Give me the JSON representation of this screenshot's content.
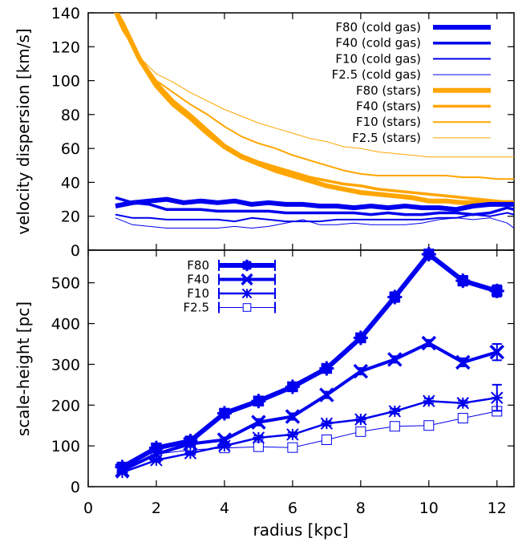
{
  "chart_data": [
    {
      "type": "line",
      "ylabel": "velocity dispersion [km/s]",
      "xlim": [
        0,
        12.5
      ],
      "ylim": [
        0,
        140
      ],
      "yticks": [
        0,
        20,
        40,
        60,
        80,
        100,
        120,
        140
      ],
      "grid": false,
      "legend_placement": "top-right",
      "series": [
        {
          "name": "F80 (cold gas)",
          "color": "#0000ee",
          "x": [
            0.8,
            1.3,
            1.8,
            2.3,
            2.8,
            3.3,
            3.8,
            4.3,
            4.8,
            5.3,
            5.8,
            6.3,
            6.8,
            7.3,
            7.8,
            8.3,
            8.8,
            9.3,
            9.8,
            10.3,
            10.8,
            11.3,
            11.8,
            12.3,
            12.5
          ],
          "y": [
            26,
            28,
            29,
            30,
            28,
            29,
            28,
            29,
            27,
            28,
            27,
            27,
            26,
            26,
            25,
            26,
            25,
            26,
            25,
            25,
            24,
            26,
            27,
            27,
            27
          ]
        },
        {
          "name": "F40 (cold gas)",
          "color": "#0000ee",
          "x": [
            0.8,
            1.3,
            1.8,
            2.3,
            2.8,
            3.3,
            3.8,
            4.3,
            4.8,
            5.3,
            5.8,
            6.3,
            6.8,
            7.3,
            7.8,
            8.3,
            8.8,
            9.3,
            9.8,
            10.3,
            10.8,
            11.3,
            11.8,
            12.3,
            12.5
          ],
          "y": [
            31,
            28,
            27,
            24,
            24,
            24,
            23,
            23,
            23,
            23,
            22,
            22,
            22,
            22,
            22,
            21,
            22,
            21,
            21,
            22,
            22,
            21,
            22,
            25,
            24
          ]
        },
        {
          "name": "F10 (cold gas)",
          "color": "#0000ee",
          "x": [
            0.8,
            1.3,
            1.8,
            2.3,
            2.8,
            3.3,
            3.8,
            4.3,
            4.8,
            5.3,
            5.8,
            6.3,
            6.8,
            7.3,
            7.8,
            8.3,
            8.8,
            9.3,
            9.8,
            10.3,
            10.8,
            11.3,
            11.8,
            12.3,
            12.5
          ],
          "y": [
            21,
            19,
            19,
            18,
            18,
            18,
            18,
            17,
            19,
            18,
            17,
            17,
            17,
            18,
            18,
            18,
            18,
            18,
            18,
            19,
            19,
            21,
            20,
            22,
            21
          ]
        },
        {
          "name": "F2.5 (cold gas)",
          "color": "#0000ee",
          "x": [
            0.8,
            1.3,
            1.8,
            2.3,
            2.8,
            3.3,
            3.8,
            4.3,
            4.8,
            5.3,
            5.8,
            6.3,
            6.8,
            7.3,
            7.8,
            8.3,
            8.8,
            9.3,
            9.8,
            10.3,
            10.8,
            11.3,
            11.8,
            12.3,
            12.5
          ],
          "y": [
            19,
            15,
            14,
            13,
            13,
            13,
            13,
            14,
            13,
            14,
            16,
            18,
            15,
            15,
            16,
            15,
            15,
            15,
            16,
            18,
            19,
            18,
            19,
            16,
            13
          ]
        },
        {
          "name": "F80 (stars)",
          "color": "#ffa500",
          "x": [
            0.8,
            1.0,
            1.5,
            2.0,
            2.5,
            3.0,
            3.5,
            4.0,
            4.5,
            5.0,
            5.5,
            6.0,
            6.5,
            7.0,
            7.5,
            8.0,
            8.5,
            9.0,
            9.5,
            10.0,
            10.5,
            11.0,
            11.5,
            12.0,
            12.5
          ],
          "y": [
            141,
            134,
            113,
            97,
            86,
            78,
            69,
            61,
            55,
            51,
            47,
            44,
            41,
            38,
            36,
            34,
            33,
            32,
            31,
            29,
            29,
            28,
            28,
            28,
            28
          ]
        },
        {
          "name": "F40 (stars)",
          "color": "#ffa500",
          "x": [
            0.8,
            1.0,
            1.5,
            2.0,
            2.5,
            3.0,
            3.5,
            4.0,
            4.5,
            5.0,
            5.5,
            6.0,
            6.5,
            7.0,
            7.5,
            8.0,
            8.5,
            9.0,
            9.5,
            10.0,
            10.5,
            11.0,
            11.5,
            12.0,
            12.5
          ],
          "y": [
            140,
            132,
            114,
            99,
            88,
            80,
            71,
            62,
            56,
            52,
            49,
            46,
            43,
            41,
            39,
            38,
            36,
            35,
            34,
            33,
            32,
            31,
            30,
            29,
            28
          ]
        },
        {
          "name": "F10 (stars)",
          "color": "#ffa500",
          "x": [
            0.8,
            1.0,
            1.5,
            2.0,
            2.5,
            3.0,
            3.5,
            4.0,
            4.5,
            5.0,
            5.5,
            6.0,
            6.5,
            7.0,
            7.5,
            8.0,
            8.5,
            9.0,
            9.5,
            10.0,
            10.5,
            11.0,
            11.5,
            12.0,
            12.5
          ],
          "y": [
            139,
            130,
            114,
            100,
            93,
            86,
            80,
            73,
            67,
            63,
            60,
            56,
            53,
            50,
            47,
            45,
            44,
            44,
            44,
            44,
            44,
            43,
            43,
            42,
            42
          ]
        },
        {
          "name": "F2.5 (stars)",
          "color": "#ffa500",
          "x": [
            0.8,
            1.0,
            1.5,
            2.0,
            2.5,
            3.0,
            3.5,
            4.0,
            4.5,
            5.0,
            5.5,
            6.0,
            6.5,
            7.0,
            7.5,
            8.0,
            8.5,
            9.0,
            9.5,
            10.0,
            10.5,
            11.0,
            11.5,
            12.0,
            12.5
          ],
          "y": [
            139,
            131,
            114,
            104,
            99,
            93,
            88,
            83,
            79,
            75,
            72,
            69,
            66,
            64,
            61,
            60,
            58,
            57,
            56,
            55,
            55,
            55,
            55,
            55,
            55
          ]
        }
      ]
    },
    {
      "type": "line",
      "xlabel": "radius [kpc]",
      "ylabel": "scale-height [pc]",
      "xlim": [
        0,
        12.5
      ],
      "ylim": [
        0,
        580
      ],
      "xticks": [
        0,
        2,
        4,
        6,
        8,
        10,
        12
      ],
      "yticks": [
        0,
        100,
        200,
        300,
        400,
        500
      ],
      "grid": false,
      "legend_placement": "top-left",
      "series": [
        {
          "name": "F80",
          "color": "#0000ee",
          "marker": "plus-filled",
          "x": [
            1,
            2,
            3,
            4,
            5,
            6,
            7,
            8,
            9,
            10,
            11,
            12
          ],
          "y": [
            48,
            95,
            112,
            180,
            210,
            245,
            290,
            365,
            465,
            570,
            505,
            480
          ],
          "err": [
            6,
            8,
            8,
            10,
            10,
            10,
            10,
            10,
            12,
            12,
            12,
            14
          ]
        },
        {
          "name": "F40",
          "color": "#0000ee",
          "marker": "cross",
          "x": [
            1,
            2,
            3,
            4,
            5,
            6,
            7,
            8,
            9,
            10,
            11,
            12
          ],
          "y": [
            40,
            80,
            105,
            115,
            158,
            172,
            225,
            283,
            312,
            352,
            305,
            330
          ],
          "err": [
            4,
            6,
            6,
            6,
            8,
            8,
            8,
            8,
            8,
            8,
            10,
            20
          ]
        },
        {
          "name": "F10",
          "color": "#0000ee",
          "marker": "star",
          "x": [
            1,
            2,
            3,
            4,
            5,
            6,
            7,
            8,
            9,
            10,
            11,
            12
          ],
          "y": [
            35,
            65,
            82,
            100,
            120,
            128,
            155,
            165,
            185,
            210,
            205,
            218
          ],
          "err": [
            4,
            4,
            4,
            4,
            5,
            5,
            5,
            5,
            6,
            6,
            6,
            32
          ]
        },
        {
          "name": "F2.5",
          "color": "#0000ee",
          "marker": "open-square",
          "x": [
            1,
            2,
            3,
            4,
            5,
            6,
            7,
            8,
            9,
            10,
            11,
            12
          ],
          "y": [
            45,
            80,
            90,
            95,
            98,
            96,
            115,
            135,
            148,
            150,
            168,
            185
          ],
          "err": [
            3,
            3,
            3,
            4,
            4,
            4,
            4,
            5,
            5,
            5,
            6,
            8
          ]
        }
      ]
    }
  ]
}
